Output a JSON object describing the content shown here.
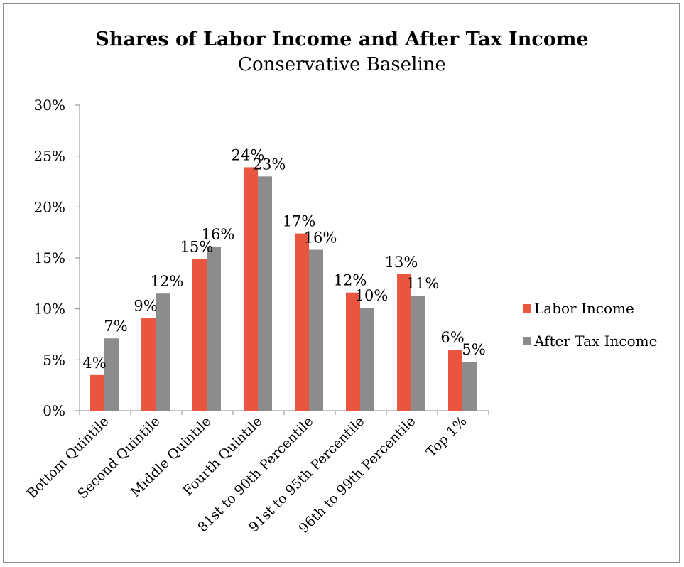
{
  "chart_data": {
    "type": "bar",
    "title": "Shares of Labor Income and After Tax Income",
    "subtitle": "Conservative Baseline",
    "categories": [
      "Bottom Quintile",
      "Second Quintile",
      "Middle Quintile",
      "Fourth Quintile",
      "81st to 90th Percentile",
      "91st to 95th Percentile",
      "96th to 99th Percentile",
      "Top 1%"
    ],
    "series": [
      {
        "name": "Labor Income",
        "color": "#E9553E",
        "values": [
          3.5,
          9.1,
          14.9,
          23.9,
          17.4,
          11.6,
          13.4,
          6.0
        ],
        "labels": [
          "4%",
          "9%",
          "15%",
          "24%",
          "17%",
          "12%",
          "13%",
          "6%"
        ]
      },
      {
        "name": "After Tax Income",
        "color": "#8C8C8C",
        "values": [
          7.1,
          11.5,
          16.1,
          23.0,
          15.8,
          10.1,
          11.3,
          4.8
        ],
        "labels": [
          "7%",
          "12%",
          "16%",
          "23%",
          "16%",
          "10%",
          "11%",
          "5%"
        ]
      }
    ],
    "yticks": [
      "0%",
      "5%",
      "10%",
      "15%",
      "20%",
      "25%",
      "30%"
    ],
    "ylim": [
      0,
      30
    ],
    "legend_position": "right",
    "grid": false
  }
}
